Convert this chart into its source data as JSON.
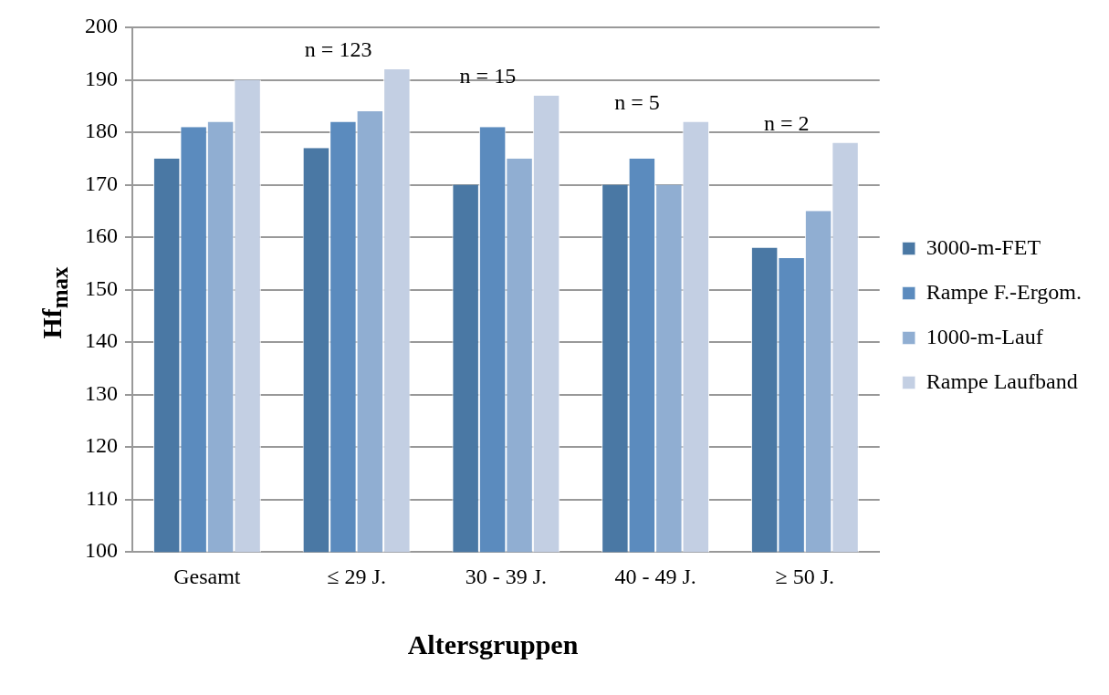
{
  "chart_data": {
    "type": "bar",
    "xlabel": "Altersgruppen",
    "ylabel": "Hf$_{max}$",
    "categories": [
      "Gesamt",
      "≤ 29 J.",
      "30 - 39 J.",
      "40 - 49 J.",
      "≥ 50 J."
    ],
    "series": [
      {
        "name": "3000-m-FET",
        "color": "#4a78a4",
        "values": [
          175,
          177,
          170,
          170,
          158
        ]
      },
      {
        "name": "Rampe F.-Ergom.",
        "color": "#5b8bbe",
        "values": [
          181,
          182,
          181,
          175,
          156
        ]
      },
      {
        "name": "1000-m-Lauf",
        "color": "#90aed2",
        "values": [
          182,
          184,
          175,
          170,
          165
        ]
      },
      {
        "name": "Rampe Laufband",
        "color": "#c3cfe3",
        "values": [
          190,
          192,
          187,
          182,
          178
        ]
      }
    ],
    "ylim": [
      100,
      200
    ],
    "yticks": [
      100,
      110,
      120,
      130,
      140,
      150,
      160,
      170,
      180,
      190,
      200
    ],
    "grid": "y",
    "legend": "right",
    "annotations": [
      "n = 123",
      "n = 15",
      "n = 5",
      "n = 2"
    ]
  }
}
